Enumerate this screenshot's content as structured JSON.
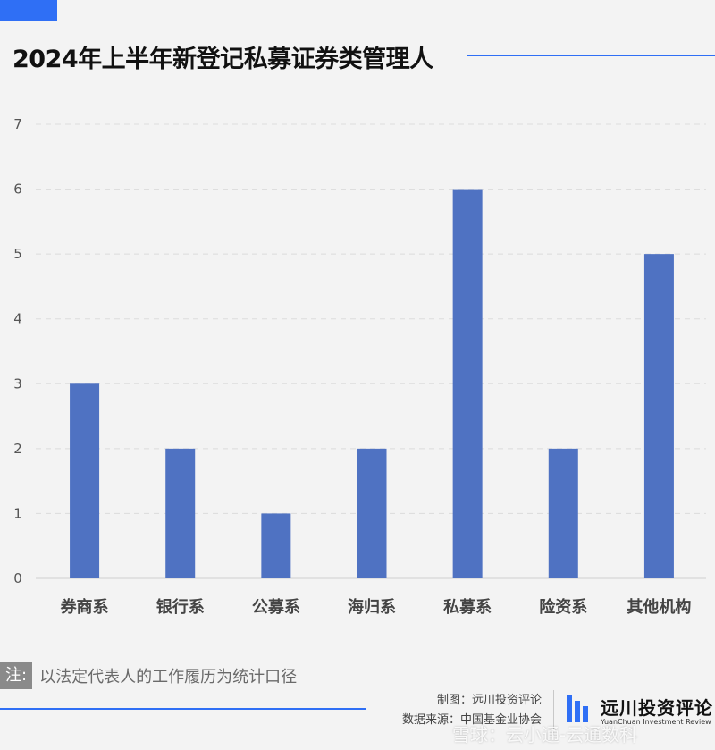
{
  "header": {
    "title": "2024年上半年新登记私募证券类管理人"
  },
  "chart_data": {
    "type": "bar",
    "title": "2024年上半年新登记私募证券类管理人",
    "categories": [
      "券商系",
      "银行系",
      "公募系",
      "海归系",
      "私募系",
      "险资系",
      "其他机构"
    ],
    "values": [
      3,
      2,
      1,
      2,
      6,
      2,
      5
    ],
    "ylim": [
      0,
      7
    ],
    "yticks": [
      "0",
      "1",
      "2",
      "3",
      "4",
      "5",
      "6",
      "7"
    ],
    "grid": true,
    "bar_color": "#4f72c2"
  },
  "note": {
    "tag": "注:",
    "text": "以法定代表人的工作履历为统计口径"
  },
  "credits": {
    "maker": "制图：远川投资评论",
    "source": "数据来源：中国基金业协会"
  },
  "logo": {
    "name_cn": "远川投资评论",
    "name_en": "YuanChuan Investment Review",
    "icon": "bar-logo-icon"
  },
  "watermark": "雪球：云小通-云通数科",
  "colors": {
    "accent": "#2f6ff5",
    "bar": "#4f72c2",
    "background": "#f3f3f3"
  }
}
